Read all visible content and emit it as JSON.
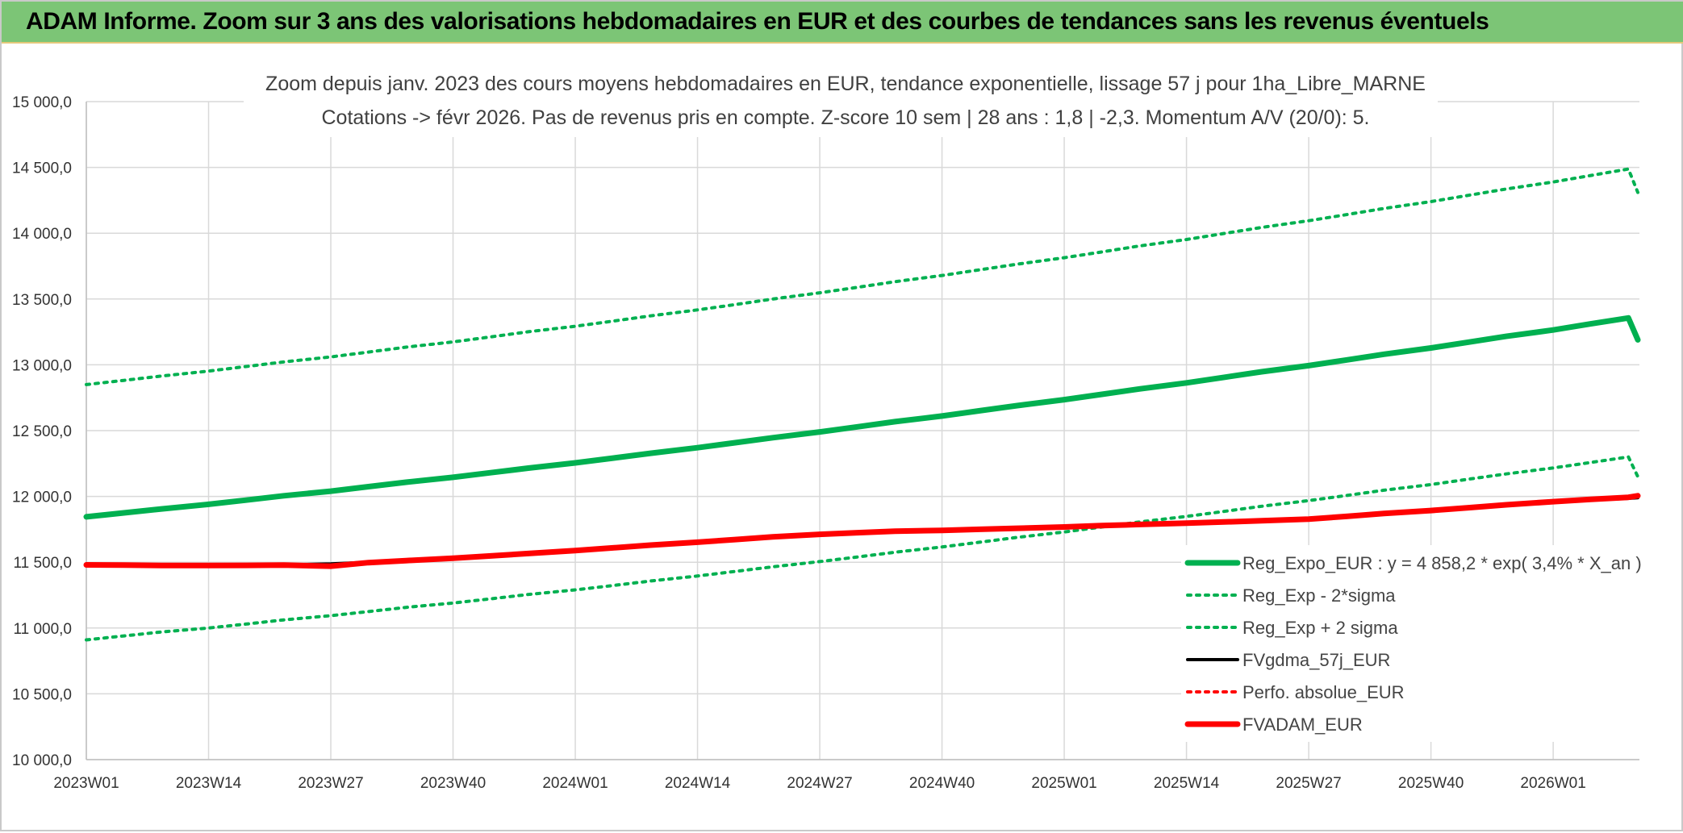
{
  "header": {
    "banner": "ADAM Informe. Zoom sur 3 ans des valorisations hebdomadaires en EUR et des courbes de tendances sans les revenus éventuels"
  },
  "colors": {
    "banner_bg": "#7cc576",
    "regression": "#00b050",
    "fvgdma": "#000000",
    "fvadam": "#ff0000",
    "grid": "#d9d9d9"
  },
  "chart_data": {
    "type": "line",
    "title": "Zoom depuis janv. 2023 des cours moyens hebdomadaires en EUR, tendance exponentielle, lissage 57 j pour 1ha_Libre_MARNE",
    "subtitle": "Cotations -> févr 2026. Pas de revenus pris en compte. Z-score 10 sem | 28 ans : 1,8 | -2,3. Momentum A/V (20/0): 5.",
    "xlabel": "",
    "ylabel": "",
    "ylim": [
      10000,
      15000
    ],
    "yticks": [
      "10 000,0",
      "10 500,0",
      "11 000,0",
      "11 500,0",
      "12 000,0",
      "12 500,0",
      "13 000,0",
      "13 500,0",
      "14 000,0",
      "14 500,0",
      "15 000,0"
    ],
    "xticks": [
      "2023W01",
      "2023W14",
      "2023W27",
      "2023W40",
      "2024W01",
      "2024W14",
      "2024W27",
      "2024W40",
      "2025W01",
      "2025W14",
      "2025W27",
      "2025W40",
      "2026W01"
    ],
    "grid": true,
    "legend_position": "bottom-right",
    "x": [
      "2023W01",
      "2023W05",
      "2023W09",
      "2023W14",
      "2023W18",
      "2023W22",
      "2023W27",
      "2023W31",
      "2023W35",
      "2023W40",
      "2023W44",
      "2023W48",
      "2024W01",
      "2024W05",
      "2024W09",
      "2024W14",
      "2024W18",
      "2024W22",
      "2024W27",
      "2024W31",
      "2024W35",
      "2024W40",
      "2024W44",
      "2024W48",
      "2025W01",
      "2025W05",
      "2025W09",
      "2025W14",
      "2025W18",
      "2025W22",
      "2025W27",
      "2025W31",
      "2025W35",
      "2025W40",
      "2025W44",
      "2025W48",
      "2026W01",
      "2026W05",
      "2026W09",
      "2026W10"
    ],
    "series": [
      {
        "name": "Reg_Expo_EUR : y = 4 858,2 * exp( 3,4% *  X_an )",
        "style": "solid-thick",
        "color": "#00b050",
        "values": [
          11845,
          11875,
          11905,
          11940,
          11972,
          12005,
          12040,
          12074,
          12108,
          12145,
          12180,
          12215,
          12255,
          12291,
          12328,
          12370,
          12408,
          12446,
          12490,
          12529,
          12568,
          12611,
          12651,
          12690,
          12735,
          12776,
          12817,
          12863,
          12905,
          12947,
          12994,
          13037,
          13080,
          13128,
          13172,
          13216,
          13265,
          13311,
          13356,
          13190
        ]
      },
      {
        "name": "Reg_Exp - 2*sigma",
        "style": "dotted",
        "color": "#00b050",
        "values": [
          10910,
          10940,
          10970,
          11000,
          11030,
          11062,
          11094,
          11125,
          11157,
          11190,
          11222,
          11255,
          11290,
          11323,
          11357,
          11395,
          11430,
          11465,
          11505,
          11540,
          11576,
          11616,
          11652,
          11689,
          11730,
          11768,
          11806,
          11848,
          11886,
          11925,
          11968,
          12007,
          12047,
          12090,
          12131,
          12171,
          12216,
          12258,
          12300,
          12150
        ]
      },
      {
        "name": "Reg_Exp + 2 sigma",
        "style": "dotted",
        "color": "#00b050",
        "values": [
          12850,
          12882,
          12915,
          12952,
          12987,
          13022,
          13060,
          13097,
          13134,
          13174,
          13212,
          13251,
          13293,
          13332,
          13372,
          13417,
          13458,
          13500,
          13547,
          13589,
          13632,
          13679,
          13722,
          13765,
          13814,
          13858,
          13903,
          13952,
          13998,
          14044,
          14095,
          14141,
          14188,
          14240,
          14288,
          14336,
          14389,
          14439,
          14488,
          14310
        ]
      },
      {
        "name": "FVgdma_57j_EUR",
        "style": "solid",
        "color": "#000000",
        "values": [
          11480,
          11478,
          11475,
          11475,
          11477,
          11480,
          11487,
          11500,
          11513,
          11530,
          11547,
          11565,
          11587,
          11608,
          11628,
          11650,
          11670,
          11690,
          11710,
          11722,
          11732,
          11740,
          11747,
          11755,
          11765,
          11775,
          11785,
          11795,
          11805,
          11816,
          11830,
          11848,
          11868,
          11890,
          11910,
          11932,
          11955,
          11972,
          11985,
          11990
        ]
      },
      {
        "name": "Perfo. absolue_EUR",
        "style": "dotted",
        "color": "#ff0000",
        "values": [
          11480,
          11478,
          11475,
          11475,
          11476,
          11478,
          11470,
          11497,
          11512,
          11530,
          11548,
          11566,
          11588,
          11609,
          11630,
          11652,
          11672,
          11693,
          11712,
          11724,
          11735,
          11742,
          11750,
          11758,
          11768,
          11778,
          11787,
          11797,
          11806,
          11815,
          11828,
          11848,
          11870,
          11893,
          11914,
          11936,
          11960,
          11978,
          11993,
          12005
        ]
      },
      {
        "name": "FVADAM_EUR",
        "style": "solid-thick",
        "color": "#ff0000",
        "values": [
          11480,
          11478,
          11475,
          11475,
          11476,
          11478,
          11470,
          11497,
          11512,
          11530,
          11548,
          11566,
          11588,
          11609,
          11630,
          11652,
          11672,
          11693,
          11712,
          11724,
          11735,
          11742,
          11750,
          11758,
          11768,
          11778,
          11787,
          11797,
          11806,
          11815,
          11828,
          11848,
          11870,
          11893,
          11914,
          11936,
          11960,
          11978,
          11993,
          12005
        ]
      }
    ]
  }
}
